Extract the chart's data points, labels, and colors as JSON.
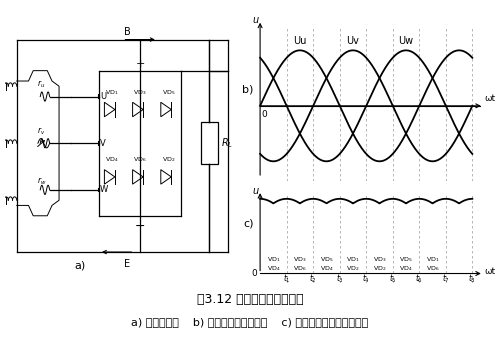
{
  "title": "图3.12 交流发电机整流原理",
  "caption": "a) 整流电路图    b) 三相绕组电压波形图    c) 整流后发电机输出波形图",
  "bg_color": "#ffffff",
  "wave_color": "#000000",
  "dashed_color": "#aaaaaa",
  "vd_top_labels": [
    "VD$_1$",
    "VD$_3$",
    "VD$_5$",
    "VD$_1$",
    "VD$_3$",
    "VD$_5$",
    "VD$_1$"
  ],
  "vd_bot_labels": [
    "VD$_4$",
    "VD$_6$",
    "VD$_4$",
    "VD$_2$",
    "VD$_2$",
    "VD$_4$",
    "VD$_6$"
  ],
  "font_size_title": 9,
  "font_size_caption": 8
}
